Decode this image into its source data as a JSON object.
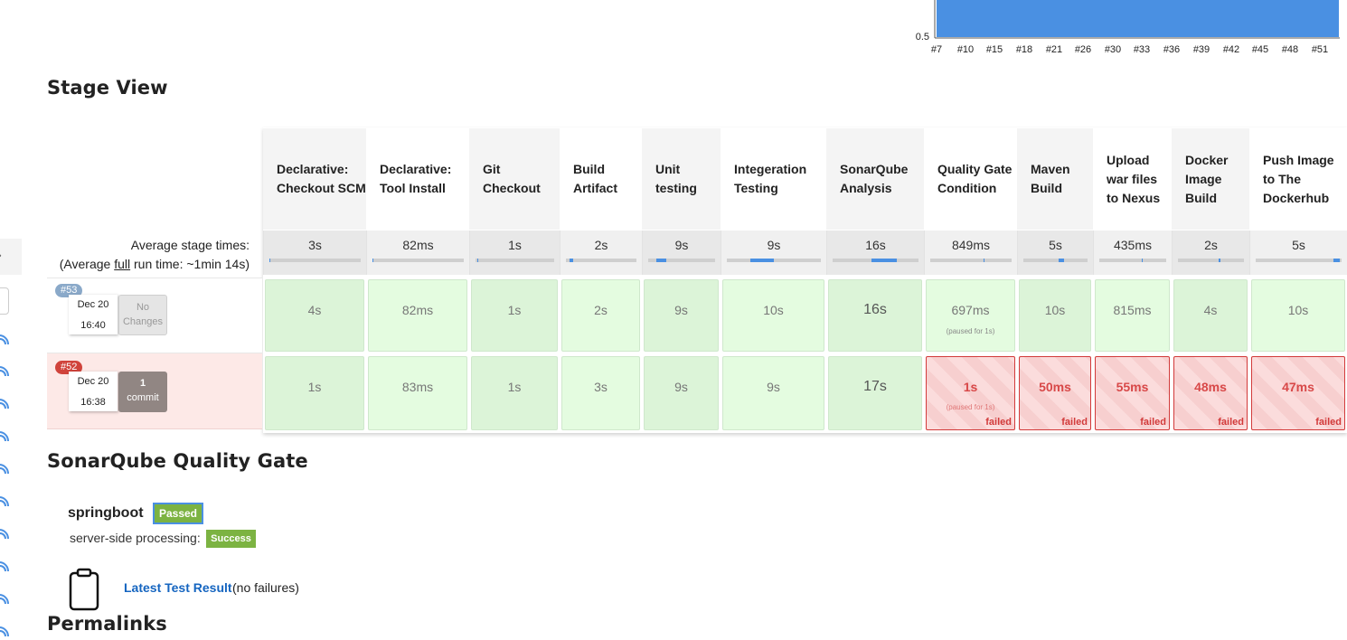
{
  "trend_chart": {
    "ytick": "0.5",
    "xticks": [
      "#7",
      "#10",
      "#15",
      "#18",
      "#21",
      "#26",
      "#30",
      "#33",
      "#36",
      "#39",
      "#42",
      "#45",
      "#48",
      "#51"
    ],
    "bar_color": "#4a90e2"
  },
  "sections": {
    "stage_view": "Stage View",
    "quality_gate": "SonarQube Quality Gate",
    "permalinks": "Permalinks"
  },
  "stage_view": {
    "avg_label_line1": "Average stage times:",
    "avg_label_pre": "(Average ",
    "avg_label_full": "full",
    "avg_label_post": " run time: ~1min 14s)",
    "stages": [
      {
        "name": "Declarative: Checkout SCM",
        "avg": "3s",
        "avg_progress": 0.0
      },
      {
        "name": "Declarative: Tool Install",
        "avg": "82ms",
        "avg_progress": 0.0
      },
      {
        "name": "Git Checkout",
        "avg": "1s",
        "avg_progress": 0.02
      },
      {
        "name": "Build Artifact",
        "avg": "2s",
        "avg_progress": 0.05
      },
      {
        "name": "Unit testing",
        "avg": "9s",
        "avg_progress": 0.15
      },
      {
        "name": "Integeration Testing",
        "avg": "9s",
        "avg_progress": 0.25
      },
      {
        "name": "SonarQube Analysis",
        "avg": "16s",
        "avg_progress": 0.3
      },
      {
        "name": "Quality Gate Condition",
        "avg": "849ms",
        "avg_progress": 0.0
      },
      {
        "name": "Maven Build",
        "avg": "5s",
        "avg_progress": 0.08
      },
      {
        "name": "Upload war files to Nexus",
        "avg": "435ms",
        "avg_progress": 0.0
      },
      {
        "name": "Docker Image Build",
        "avg": "2s",
        "avg_progress": 0.03
      },
      {
        "name": "Push Image to The Dockerhub",
        "avg": "5s",
        "avg_progress": 0.08
      }
    ],
    "builds": [
      {
        "number": "#53",
        "date": "Dec 20",
        "time": "16:40",
        "changes_line1": "No",
        "changes_line2": "Changes",
        "cells": [
          {
            "value": "4s",
            "status": "success"
          },
          {
            "value": "82ms",
            "status": "success"
          },
          {
            "value": "1s",
            "status": "success"
          },
          {
            "value": "2s",
            "status": "success"
          },
          {
            "value": "9s",
            "status": "success"
          },
          {
            "value": "10s",
            "status": "success"
          },
          {
            "value": "16s",
            "status": "success"
          },
          {
            "value": "697ms",
            "status": "success",
            "note": "(paused for 1s)"
          },
          {
            "value": "10s",
            "status": "success"
          },
          {
            "value": "815ms",
            "status": "success"
          },
          {
            "value": "4s",
            "status": "success"
          },
          {
            "value": "10s",
            "status": "success"
          }
        ]
      },
      {
        "number": "#52",
        "date": "Dec 20",
        "time": "16:38",
        "changes_line1": "1",
        "changes_line2": "commit",
        "cells": [
          {
            "value": "1s",
            "status": "success"
          },
          {
            "value": "83ms",
            "status": "success"
          },
          {
            "value": "1s",
            "status": "success"
          },
          {
            "value": "3s",
            "status": "success"
          },
          {
            "value": "9s",
            "status": "success"
          },
          {
            "value": "9s",
            "status": "success"
          },
          {
            "value": "17s",
            "status": "success"
          },
          {
            "value": "1s",
            "status": "failed",
            "note": "(paused for 1s)",
            "label": "failed"
          },
          {
            "value": "50ms",
            "status": "failed",
            "label": "failed"
          },
          {
            "value": "55ms",
            "status": "failed",
            "label": "failed"
          },
          {
            "value": "48ms",
            "status": "failed",
            "label": "failed"
          },
          {
            "value": "47ms",
            "status": "failed",
            "label": "failed"
          }
        ]
      }
    ]
  },
  "quality_gate": {
    "project": "springboot",
    "status": "Passed",
    "processing_label": "server-side processing:",
    "processing_status": "Success"
  },
  "test_result": {
    "link": "Latest Test Result",
    "tail": "(no failures)"
  }
}
